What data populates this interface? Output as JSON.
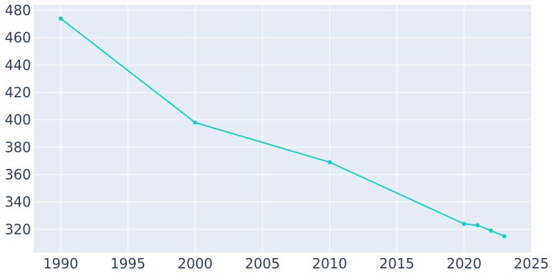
{
  "chart_data": {
    "type": "line",
    "title": "",
    "xlabel": "",
    "ylabel": "",
    "x": [
      1990,
      2000,
      2010,
      2020,
      2021,
      2022,
      2023
    ],
    "series": [
      {
        "values": [
          474,
          398,
          369,
          324,
          323,
          319,
          315
        ]
      }
    ],
    "xlim": [
      1988,
      2025
    ],
    "ylim": [
      303,
      484
    ],
    "x_ticks": [
      1990,
      1995,
      2000,
      2005,
      2010,
      2015,
      2020,
      2025
    ],
    "y_ticks": [
      320,
      340,
      360,
      380,
      400,
      420,
      440,
      460,
      480
    ],
    "grid": true,
    "legend": "none",
    "colors": {
      "plot_background": "#e5ecf6",
      "grid": "#ffffff",
      "line": "#0fcfcf",
      "tick_text": "#2a3f5f"
    }
  }
}
